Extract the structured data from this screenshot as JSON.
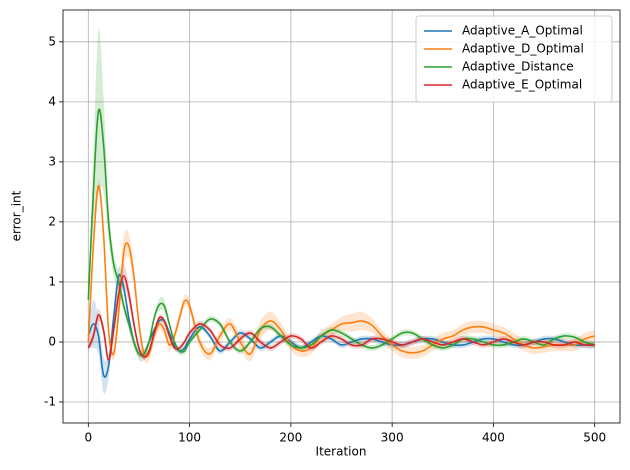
{
  "chart_data": {
    "type": "line",
    "xlabel": "Iteration",
    "ylabel": "error_int",
    "x": [
      0,
      5,
      10,
      15,
      20,
      25,
      30,
      35,
      40,
      45,
      50,
      55,
      60,
      65,
      70,
      75,
      80,
      85,
      90,
      95,
      100,
      110,
      120,
      130,
      140,
      150,
      160,
      170,
      180,
      190,
      200,
      210,
      220,
      230,
      240,
      250,
      260,
      270,
      280,
      290,
      300,
      310,
      320,
      330,
      340,
      350,
      360,
      370,
      380,
      390,
      400,
      410,
      420,
      430,
      440,
      450,
      460,
      470,
      480,
      490,
      500
    ],
    "xlim": [
      -25,
      525
    ],
    "xticks": [
      0,
      100,
      200,
      300,
      400,
      500
    ],
    "ylim": [
      -1.35,
      5.53
    ],
    "yticks": [
      -1,
      0,
      1,
      2,
      3,
      4,
      5
    ],
    "grid": true,
    "legend": "upper right",
    "series": [
      {
        "name": "Adaptive_A_Optimal",
        "color": "#1f77b4",
        "values": [
          0.1,
          0.3,
          0.1,
          -0.55,
          -0.4,
          0.4,
          1.1,
          0.9,
          0.4,
          0.0,
          -0.2,
          -0.2,
          0.0,
          0.2,
          0.35,
          0.35,
          0.15,
          -0.05,
          -0.15,
          -0.1,
          0.05,
          0.25,
          0.1,
          -0.15,
          0.0,
          0.15,
          0.05,
          -0.1,
          0.0,
          0.1,
          0.0,
          -0.1,
          0.0,
          0.1,
          0.05,
          -0.05,
          0.0,
          0.05,
          0.05,
          0.0,
          -0.05,
          -0.05,
          0.0,
          0.05,
          0.05,
          0.0,
          -0.05,
          -0.05,
          0.0,
          0.05,
          0.05,
          0.0,
          -0.05,
          -0.05,
          0.0,
          0.05,
          0.05,
          0.0,
          -0.05,
          -0.05,
          -0.05
        ],
        "spread": [
          0.2,
          0.4,
          0.3,
          0.3,
          0.2,
          0.15,
          0.15,
          0.1,
          0.08,
          0.05,
          0.05,
          0.05,
          0.05,
          0.05,
          0.05,
          0.05,
          0.05,
          0.05,
          0.05,
          0.05,
          0.05,
          0.05,
          0.05,
          0.05,
          0.05,
          0.05,
          0.05,
          0.05,
          0.05,
          0.05,
          0.05,
          0.05,
          0.05,
          0.05,
          0.05,
          0.05,
          0.05,
          0.05,
          0.05,
          0.05,
          0.05,
          0.05,
          0.05,
          0.05,
          0.05,
          0.05,
          0.05,
          0.05,
          0.05,
          0.05,
          0.05,
          0.05,
          0.05,
          0.05,
          0.05,
          0.05,
          0.05,
          0.05,
          0.05,
          0.05,
          0.05
        ]
      },
      {
        "name": "Adaptive_D_Optimal",
        "color": "#ff7f0e",
        "values": [
          0.0,
          1.6,
          2.6,
          1.8,
          0.2,
          -0.2,
          0.5,
          1.5,
          1.6,
          1.1,
          0.3,
          -0.2,
          -0.2,
          0.1,
          0.3,
          0.2,
          -0.05,
          0.1,
          0.4,
          0.68,
          0.6,
          0.0,
          -0.2,
          0.1,
          0.3,
          0.0,
          -0.2,
          0.2,
          0.35,
          0.2,
          -0.05,
          -0.15,
          -0.1,
          0.1,
          0.2,
          0.3,
          0.32,
          0.35,
          0.28,
          0.1,
          -0.05,
          -0.15,
          -0.18,
          -0.15,
          -0.05,
          0.05,
          0.1,
          0.2,
          0.25,
          0.25,
          0.2,
          0.15,
          0.05,
          -0.05,
          -0.1,
          -0.08,
          -0.05,
          -0.05,
          -0.05,
          0.05,
          0.1
        ],
        "spread": [
          0.05,
          0.1,
          0.1,
          0.15,
          0.1,
          0.1,
          0.2,
          0.25,
          0.2,
          0.15,
          0.1,
          0.1,
          0.1,
          0.1,
          0.1,
          0.1,
          0.1,
          0.1,
          0.1,
          0.1,
          0.1,
          0.1,
          0.1,
          0.1,
          0.1,
          0.12,
          0.12,
          0.15,
          0.15,
          0.12,
          0.1,
          0.1,
          0.1,
          0.1,
          0.1,
          0.12,
          0.15,
          0.15,
          0.12,
          0.1,
          0.1,
          0.1,
          0.1,
          0.1,
          0.1,
          0.1,
          0.1,
          0.1,
          0.1,
          0.1,
          0.1,
          0.1,
          0.1,
          0.1,
          0.1,
          0.1,
          0.1,
          0.1,
          0.1,
          0.1,
          0.1
        ]
      },
      {
        "name": "Adaptive_Distance",
        "color": "#2ca02c",
        "values": [
          0.7,
          2.5,
          3.85,
          3.3,
          2.0,
          1.3,
          1.0,
          0.6,
          0.3,
          0.0,
          -0.2,
          -0.2,
          0.0,
          0.4,
          0.62,
          0.6,
          0.3,
          0.0,
          -0.15,
          -0.15,
          0.0,
          0.2,
          0.38,
          0.3,
          0.0,
          -0.15,
          0.0,
          0.22,
          0.25,
          0.1,
          -0.05,
          -0.1,
          -0.05,
          0.1,
          0.2,
          0.15,
          0.05,
          -0.05,
          -0.1,
          -0.05,
          0.05,
          0.15,
          0.15,
          0.05,
          -0.05,
          -0.1,
          -0.05,
          0.05,
          0.05,
          0.0,
          -0.05,
          -0.05,
          0.0,
          0.05,
          0.0,
          -0.05,
          0.05,
          0.1,
          0.08,
          0.0,
          -0.05
        ],
        "spread": [
          0.1,
          0.6,
          1.35,
          0.8,
          0.3,
          0.2,
          0.15,
          0.1,
          0.1,
          0.1,
          0.1,
          0.1,
          0.05,
          0.05,
          0.1,
          0.1,
          0.05,
          0.05,
          0.05,
          0.05,
          0.05,
          0.05,
          0.05,
          0.05,
          0.05,
          0.05,
          0.05,
          0.05,
          0.05,
          0.05,
          0.05,
          0.05,
          0.05,
          0.05,
          0.05,
          0.05,
          0.05,
          0.05,
          0.05,
          0.05,
          0.05,
          0.05,
          0.05,
          0.05,
          0.05,
          0.05,
          0.05,
          0.05,
          0.05,
          0.05,
          0.05,
          0.05,
          0.05,
          0.05,
          0.05,
          0.05,
          0.05,
          0.05,
          0.05,
          0.05,
          0.05
        ]
      },
      {
        "name": "Adaptive_E_Optimal",
        "color": "#d62728",
        "values": [
          -0.1,
          0.1,
          0.45,
          0.2,
          -0.3,
          0.2,
          0.8,
          1.1,
          0.8,
          0.3,
          -0.1,
          -0.25,
          -0.15,
          0.15,
          0.4,
          0.35,
          0.1,
          -0.1,
          -0.1,
          0.0,
          0.15,
          0.3,
          0.2,
          -0.05,
          -0.1,
          0.05,
          0.15,
          0.0,
          -0.1,
          0.0,
          0.1,
          0.05,
          -0.1,
          0.0,
          0.1,
          0.05,
          -0.05,
          -0.05,
          0.05,
          0.05,
          0.0,
          -0.05,
          0.0,
          0.05,
          0.0,
          -0.05,
          0.0,
          0.05,
          0.0,
          -0.05,
          0.0,
          0.05,
          0.0,
          -0.05,
          0.0,
          0.0,
          -0.05,
          -0.05,
          0.0,
          -0.05,
          -0.05
        ],
        "spread": [
          0.05,
          0.1,
          0.1,
          0.1,
          0.1,
          0.15,
          0.2,
          0.2,
          0.15,
          0.1,
          0.05,
          0.05,
          0.05,
          0.05,
          0.05,
          0.05,
          0.05,
          0.05,
          0.05,
          0.05,
          0.05,
          0.05,
          0.05,
          0.05,
          0.05,
          0.05,
          0.05,
          0.05,
          0.05,
          0.05,
          0.05,
          0.05,
          0.05,
          0.05,
          0.05,
          0.05,
          0.05,
          0.05,
          0.05,
          0.05,
          0.05,
          0.05,
          0.05,
          0.05,
          0.05,
          0.05,
          0.05,
          0.05,
          0.05,
          0.05,
          0.05,
          0.05,
          0.05,
          0.05,
          0.05,
          0.05,
          0.05,
          0.05,
          0.05,
          0.05,
          0.05
        ]
      }
    ]
  }
}
